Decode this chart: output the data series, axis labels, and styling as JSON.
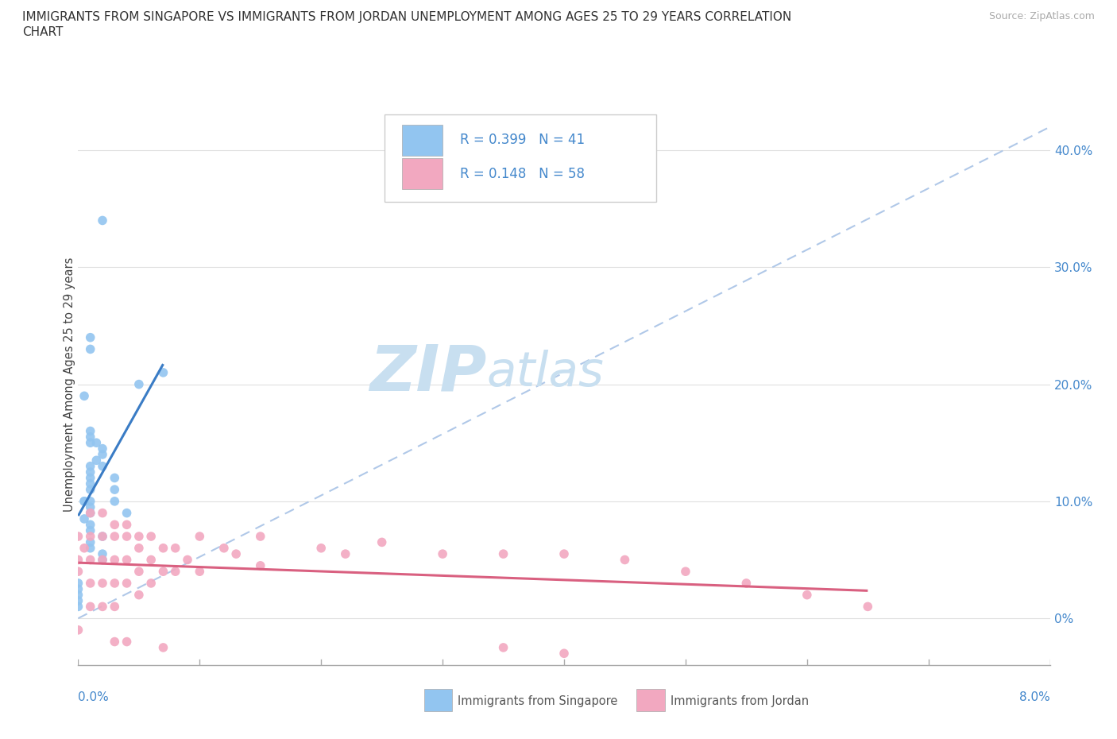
{
  "title_line1": "IMMIGRANTS FROM SINGAPORE VS IMMIGRANTS FROM JORDAN UNEMPLOYMENT AMONG AGES 25 TO 29 YEARS CORRELATION",
  "title_line2": "CHART",
  "source": "Source: ZipAtlas.com",
  "ylabel": "Unemployment Among Ages 25 to 29 years",
  "ylabel_right_ticks": [
    "0%",
    "10.0%",
    "20.0%",
    "30.0%",
    "40.0%"
  ],
  "ylabel_right_vals": [
    0.0,
    0.1,
    0.2,
    0.3,
    0.4
  ],
  "x_min": 0.0,
  "x_max": 0.08,
  "y_min": -0.04,
  "y_max": 0.44,
  "singapore_R": 0.399,
  "singapore_N": 41,
  "jordan_R": 0.148,
  "jordan_N": 58,
  "singapore_color": "#92c5f0",
  "jordan_color": "#f2a8c0",
  "singapore_line_color": "#3a7cc5",
  "jordan_line_color": "#d96080",
  "dashed_line_color": "#b0c8e8",
  "watermark_top": "ZIP",
  "watermark_bottom": "atlas",
  "watermark_color": "#c8dff0",
  "legend_label_singapore": "Immigrants from Singapore",
  "legend_label_jordan": "Immigrants from Jordan",
  "singapore_x": [
    0.002,
    0.001,
    0.001,
    0.0005,
    0.001,
    0.001,
    0.001,
    0.0015,
    0.002,
    0.002,
    0.0015,
    0.001,
    0.002,
    0.001,
    0.001,
    0.001,
    0.001,
    0.0005,
    0.001,
    0.0005,
    0.001,
    0.001,
    0.0005,
    0.001,
    0.001,
    0.002,
    0.001,
    0.001,
    0.002,
    0.002,
    0.003,
    0.003,
    0.003,
    0.004,
    0.005,
    0.007,
    0.0,
    0.0,
    0.0,
    0.0,
    0.0
  ],
  "singapore_y": [
    0.34,
    0.24,
    0.23,
    0.19,
    0.16,
    0.155,
    0.15,
    0.15,
    0.145,
    0.14,
    0.135,
    0.13,
    0.13,
    0.125,
    0.12,
    0.115,
    0.11,
    0.1,
    0.1,
    0.1,
    0.095,
    0.09,
    0.085,
    0.08,
    0.075,
    0.07,
    0.065,
    0.06,
    0.055,
    0.05,
    0.12,
    0.11,
    0.1,
    0.09,
    0.2,
    0.21,
    0.03,
    0.025,
    0.02,
    0.015,
    0.01
  ],
  "jordan_x": [
    0.0,
    0.0,
    0.0,
    0.0,
    0.0005,
    0.001,
    0.001,
    0.001,
    0.001,
    0.001,
    0.002,
    0.002,
    0.002,
    0.002,
    0.002,
    0.003,
    0.003,
    0.003,
    0.003,
    0.003,
    0.004,
    0.004,
    0.004,
    0.004,
    0.005,
    0.005,
    0.005,
    0.005,
    0.006,
    0.006,
    0.006,
    0.007,
    0.007,
    0.008,
    0.008,
    0.009,
    0.01,
    0.01,
    0.012,
    0.013,
    0.015,
    0.015,
    0.02,
    0.022,
    0.025,
    0.03,
    0.035,
    0.04,
    0.045,
    0.05,
    0.055,
    0.06,
    0.065,
    0.003,
    0.004,
    0.007,
    0.035,
    0.04
  ],
  "jordan_y": [
    0.07,
    0.05,
    0.04,
    -0.01,
    0.06,
    0.09,
    0.07,
    0.05,
    0.03,
    0.01,
    0.09,
    0.07,
    0.05,
    0.03,
    0.01,
    0.08,
    0.07,
    0.05,
    0.03,
    0.01,
    0.08,
    0.07,
    0.05,
    0.03,
    0.07,
    0.06,
    0.04,
    0.02,
    0.07,
    0.05,
    0.03,
    0.06,
    0.04,
    0.06,
    0.04,
    0.05,
    0.07,
    0.04,
    0.06,
    0.055,
    0.07,
    0.045,
    0.06,
    0.055,
    0.065,
    0.055,
    0.055,
    0.055,
    0.05,
    0.04,
    0.03,
    0.02,
    0.01,
    -0.02,
    -0.02,
    -0.025,
    -0.025,
    -0.03
  ],
  "background_color": "#ffffff",
  "grid_color": "#e0e0e0"
}
